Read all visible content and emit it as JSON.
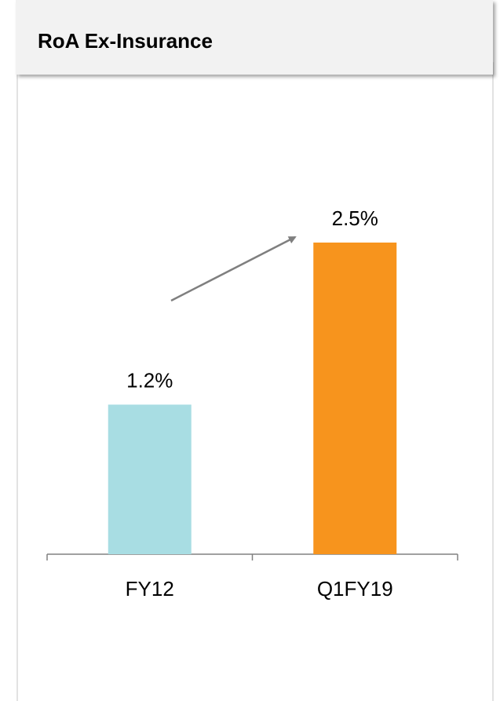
{
  "chart_data": {
    "type": "bar",
    "title": "RoA Ex-Insurance",
    "categories": [
      "FY12",
      "Q1FY19"
    ],
    "values": [
      1.2,
      2.5
    ],
    "value_labels": [
      "1.2%",
      "2.5%"
    ],
    "colors": [
      "#a8dde3",
      "#f7941d"
    ]
  }
}
